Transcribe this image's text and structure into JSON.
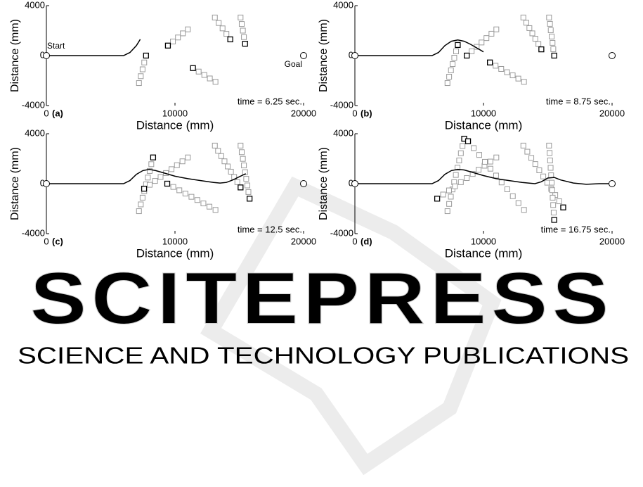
{
  "chart_data": [
    {
      "type": "trajectory",
      "panel": "(a)",
      "annotation": "time = 6.25 sec.",
      "start_label": "Start",
      "goal_label": "Goal",
      "xlabel": "Distance (mm)",
      "ylabel": "Distance (mm)",
      "xlim": [
        0,
        20000
      ],
      "ylim": [
        -4000,
        4000
      ],
      "xticks": [
        0,
        10000,
        20000
      ],
      "yticks": [
        -4000,
        0,
        4000
      ],
      "start": {
        "x": 0,
        "y": 0
      },
      "goal": {
        "x": 20000,
        "y": 0
      },
      "path": {
        "color": "#000000",
        "x": [
          0,
          3000,
          6000,
          6500,
          7000,
          7300
        ],
        "y": [
          0,
          0,
          0,
          250,
          800,
          1300
        ]
      },
      "obstacle_color": "#9a9a9a",
      "current_color": "#000000",
      "obstacles": [
        {
          "x": [
            7200,
            7340,
            7480,
            7610,
            7750
          ],
          "y": [
            -2200,
            -1650,
            -1100,
            -550,
            0
          ]
        },
        {
          "x": [
            11000,
            10610,
            10230,
            9840,
            9450
          ],
          "y": [
            2100,
            1780,
            1450,
            1130,
            800
          ]
        },
        {
          "x": [
            13150,
            12710,
            12280,
            11840,
            11400
          ],
          "y": [
            -2100,
            -1830,
            -1550,
            -1280,
            -1000
          ]
        },
        {
          "x": [
            13100,
            13400,
            13700,
            14000,
            14300
          ],
          "y": [
            3050,
            2610,
            2180,
            1740,
            1300
          ]
        },
        {
          "x": [
            15100,
            15190,
            15280,
            15360,
            15450
          ],
          "y": [
            3050,
            2530,
            2000,
            1480,
            950
          ]
        }
      ]
    },
    {
      "type": "trajectory",
      "panel": "(b)",
      "annotation": "time = 8.75 sec.",
      "xlabel": "Distance (mm)",
      "ylabel": "Distance (mm)",
      "xlim": [
        0,
        20000
      ],
      "ylim": [
        -4000,
        4000
      ],
      "xticks": [
        0,
        10000,
        20000
      ],
      "yticks": [
        -4000,
        0,
        4000
      ],
      "start": {
        "x": 0,
        "y": 0
      },
      "goal": {
        "x": 20000,
        "y": 0
      },
      "path": {
        "color": "#000000",
        "x": [
          0,
          3000,
          6000,
          6500,
          7000,
          7500,
          8000,
          8500,
          9000,
          9500,
          10000
        ],
        "y": [
          0,
          0,
          0,
          250,
          800,
          1150,
          1250,
          1150,
          900,
          600,
          300
        ]
      },
      "obstacle_color": "#9a9a9a",
      "current_color": "#000000",
      "obstacles": [
        {
          "x": [
            7200,
            7330,
            7470,
            7600,
            7730,
            7870,
            8000
          ],
          "y": [
            -2200,
            -1690,
            -1180,
            -680,
            -170,
            340,
            850
          ]
        },
        {
          "x": [
            11000,
            10620,
            10230,
            9850,
            9470,
            9080,
            8700
          ],
          "y": [
            2100,
            1750,
            1400,
            1050,
            700,
            350,
            0
          ]
        },
        {
          "x": [
            13150,
            12710,
            12270,
            11830,
            11380,
            10940,
            10500
          ],
          "y": [
            -2100,
            -1840,
            -1580,
            -1330,
            -1070,
            -810,
            -550
          ]
        },
        {
          "x": [
            13100,
            13330,
            13570,
            13800,
            14030,
            14270,
            14500
          ],
          "y": [
            3050,
            2630,
            2200,
            1780,
            1350,
            930,
            500
          ]
        },
        {
          "x": [
            15100,
            15170,
            15230,
            15300,
            15370,
            15430,
            15500
          ],
          "y": [
            3050,
            2540,
            2030,
            1530,
            1020,
            510,
            0
          ]
        }
      ]
    },
    {
      "type": "trajectory",
      "panel": "(c)",
      "annotation": "time = 12.5 sec.",
      "xlabel": "Distance (mm)",
      "ylabel": "Distance (mm)",
      "xlim": [
        0,
        20000
      ],
      "ylim": [
        -4000,
        4000
      ],
      "xticks": [
        0,
        10000,
        20000
      ],
      "yticks": [
        -4000,
        0,
        4000
      ],
      "start": {
        "x": 0,
        "y": 0
      },
      "goal": {
        "x": 20000,
        "y": 0
      },
      "path": {
        "color": "#000000",
        "x": [
          0,
          6000,
          6500,
          7000,
          7500,
          8000,
          8500,
          9000,
          10000,
          11000,
          12000,
          13000,
          13500,
          14000,
          14500,
          15000,
          15500
        ],
        "y": [
          0,
          0,
          250,
          750,
          1050,
          1150,
          1050,
          900,
          600,
          400,
          250,
          100,
          50,
          100,
          300,
          550,
          800
        ]
      },
      "obstacle_color": "#9a9a9a",
      "current_color": "#000000",
      "obstacles": [
        {
          "x": [
            7200,
            7340,
            7480,
            7610,
            7750,
            7890,
            8030,
            8160,
            8300
          ],
          "y": [
            -2200,
            -1660,
            -1120,
            -590,
            -50,
            490,
            1020,
            1560,
            2100
          ]
        },
        {
          "x": [
            11000,
            10580,
            10150,
            9730,
            9300,
            8880,
            8450,
            8030,
            7600
          ],
          "y": [
            2100,
            1790,
            1480,
            1160,
            850,
            540,
            220,
            -90,
            -400
          ]
        },
        {
          "x": [
            13150,
            12680,
            12210,
            11740,
            11280,
            10810,
            10340,
            9870,
            9400
          ],
          "y": [
            -2100,
            -1840,
            -1580,
            -1310,
            -1050,
            -790,
            -530,
            -260,
            0
          ]
        },
        {
          "x": [
            13100,
            13350,
            13600,
            13850,
            14100,
            14350,
            14600,
            14850,
            15100
          ],
          "y": [
            3050,
            2630,
            2210,
            1790,
            1380,
            960,
            540,
            120,
            -300
          ]
        },
        {
          "x": [
            15100,
            15190,
            15280,
            15360,
            15450,
            15540,
            15630,
            15710,
            15800
          ],
          "y": [
            3050,
            2520,
            1990,
            1460,
            920,
            390,
            -140,
            -670,
            -1200
          ]
        }
      ]
    },
    {
      "type": "trajectory",
      "panel": "(d)",
      "annotation": "time = 16.75 sec.",
      "xlabel": "Distance (mm)",
      "ylabel": "Distance (mm)",
      "xlim": [
        0,
        20000
      ],
      "ylim": [
        -4000,
        4000
      ],
      "xticks": [
        0,
        10000,
        20000
      ],
      "yticks": [
        -4000,
        0,
        4000
      ],
      "start": {
        "x": 0,
        "y": 0
      },
      "goal": {
        "x": 20000,
        "y": 0
      },
      "path": {
        "color": "#000000",
        "x": [
          0,
          6000,
          6500,
          7000,
          7500,
          8000,
          8500,
          9000,
          10000,
          11000,
          12000,
          13000,
          14000,
          14500,
          15000,
          15500,
          16000,
          17000,
          18000,
          19000,
          20000
        ],
        "y": [
          0,
          0,
          250,
          750,
          1050,
          1150,
          1100,
          950,
          650,
          400,
          250,
          100,
          0,
          150,
          450,
          500,
          300,
          50,
          -50,
          0,
          0
        ]
      },
      "obstacle_color": "#9a9a9a",
      "current_color": "#000000",
      "obstacles": [
        {
          "x": [
            7200,
            7330,
            7460,
            7590,
            7720,
            7850,
            7980,
            8110,
            8240,
            8370,
            8500
          ],
          "y": [
            -2200,
            -1620,
            -1040,
            -460,
            120,
            700,
            1280,
            1860,
            2440,
            3020,
            3600
          ]
        },
        {
          "x": [
            11000,
            10540,
            10080,
            9620,
            9160,
            8700,
            8240,
            7780,
            7320,
            6860,
            6400
          ],
          "y": [
            2100,
            1770,
            1440,
            1110,
            780,
            450,
            120,
            -210,
            -540,
            -870,
            -1200
          ]
        },
        {
          "x": [
            13150,
            12720,
            12280,
            11850,
            11410,
            10980,
            10540,
            10110,
            9670,
            9240,
            8800
          ],
          "y": [
            -2100,
            -1550,
            -1000,
            -450,
            100,
            650,
            1200,
            1750,
            2300,
            2850,
            3400
          ]
        },
        {
          "x": [
            13100,
            13410,
            13720,
            14030,
            14340,
            14650,
            14960,
            15270,
            15580,
            15890,
            16200
          ],
          "y": [
            3050,
            2560,
            2060,
            1570,
            1070,
            580,
            80,
            -420,
            -910,
            -1410,
            -1900
          ]
        },
        {
          "x": [
            15100,
            15140,
            15180,
            15220,
            15260,
            15300,
            15340,
            15380,
            15420,
            15460,
            15500
          ],
          "y": [
            3050,
            2460,
            1860,
            1270,
            670,
            80,
            -520,
            -1120,
            -1710,
            -2310,
            -2900
          ]
        }
      ]
    }
  ],
  "watermark": {
    "title": "SCITEPRESS",
    "subtitle": "SCIENCE AND TECHNOLOGY PUBLICATIONS"
  }
}
